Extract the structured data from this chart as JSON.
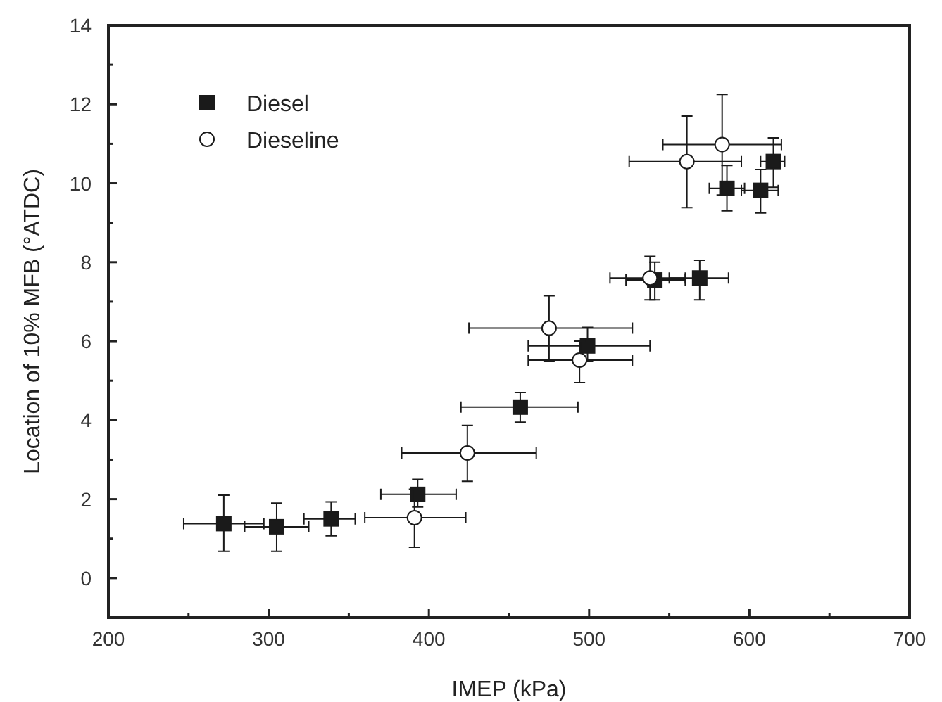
{
  "chart_data": {
    "type": "scatter",
    "xlabel": "IMEP (kPa)",
    "ylabel": "Location of 10% MFB (°ATDC)",
    "xlim": [
      200,
      700
    ],
    "ylim": [
      -1,
      14
    ],
    "xticks": [
      200,
      {
        "value": 250,
        "label": null
      },
      300,
      {
        "value": 350,
        "label": null
      },
      400,
      {
        "value": 450,
        "label": null
      },
      500,
      {
        "value": 550,
        "label": null
      },
      600,
      {
        "value": 650,
        "label": null
      },
      700
    ],
    "yticks": [
      0,
      {
        "value": 1,
        "label": null
      },
      2,
      {
        "value": 3,
        "label": null
      },
      4,
      {
        "value": 5,
        "label": null
      },
      6,
      {
        "value": 7,
        "label": null
      },
      8,
      {
        "value": 9,
        "label": null
      },
      10,
      {
        "value": 11,
        "label": null
      },
      12,
      {
        "value": 13,
        "label": null
      },
      14
    ],
    "legend": "top left",
    "grid": false,
    "series": [
      {
        "name": "Diesel",
        "color": "#1a1a1a",
        "marker": "square",
        "x": [
          272,
          305,
          339,
          393,
          457,
          499,
          541,
          569,
          586,
          607,
          615
        ],
        "values": [
          1.38,
          1.3,
          1.5,
          2.12,
          4.33,
          5.88,
          7.55,
          7.6,
          9.87,
          9.82,
          10.55
        ],
        "xerrors": [
          [
            247,
            297
          ],
          [
            285,
            325
          ],
          [
            322,
            354
          ],
          [
            370,
            417
          ],
          [
            420,
            493
          ],
          [
            462,
            538
          ],
          [
            523,
            560
          ],
          [
            550,
            587
          ],
          [
            575,
            597
          ],
          [
            595,
            618
          ],
          [
            607,
            622
          ]
        ],
        "errors": [
          [
            0.68,
            2.1
          ],
          [
            0.68,
            1.9
          ],
          [
            1.07,
            1.93
          ],
          [
            1.8,
            2.5
          ],
          [
            3.95,
            4.7
          ],
          [
            5.5,
            6.35
          ],
          [
            7.05,
            8.0
          ],
          [
            7.05,
            8.05
          ],
          [
            9.3,
            10.45
          ],
          [
            9.25,
            10.35
          ],
          [
            9.9,
            11.15
          ]
        ]
      },
      {
        "name": "Dieseline",
        "color": "#ffffff",
        "marker": "circle",
        "x": [
          391,
          424,
          475,
          494,
          538,
          561,
          583
        ],
        "values": [
          1.53,
          3.17,
          6.33,
          5.52,
          7.6,
          10.55,
          10.98
        ],
        "xerrors": [
          [
            360,
            423
          ],
          [
            383,
            467
          ],
          [
            425,
            527
          ],
          [
            462,
            527
          ],
          [
            513,
            560
          ],
          [
            525,
            595
          ],
          [
            546,
            620
          ]
        ],
        "errors": [
          [
            0.78,
            2.25
          ],
          [
            2.45,
            3.87
          ],
          [
            5.5,
            7.15
          ],
          [
            4.95,
            6.0
          ],
          [
            7.05,
            8.15
          ],
          [
            9.38,
            11.7
          ],
          [
            9.7,
            12.25
          ]
        ]
      }
    ]
  }
}
